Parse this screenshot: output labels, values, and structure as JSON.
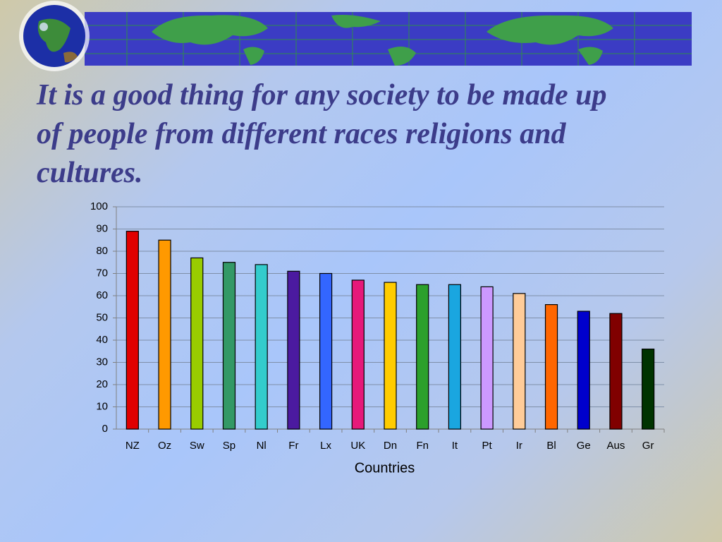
{
  "chart_data": {
    "type": "bar",
    "title": "It is a good thing for any society to be made up of people from different races religions and cultures.",
    "x_label": "Countries",
    "categories": [
      "NZ",
      "Oz",
      "Sw",
      "Sp",
      "Nl",
      "Fr",
      "Lx",
      "UK",
      "Dn",
      "Fn",
      "It",
      "Pt",
      "Ir",
      "Bl",
      "Ge",
      "Aus",
      "Gr"
    ],
    "values": [
      89,
      85,
      77,
      75,
      74,
      71,
      70,
      67,
      66,
      65,
      65,
      64,
      61,
      56,
      53,
      52,
      36
    ],
    "colors": [
      "#e00000",
      "#ff9900",
      "#99cc00",
      "#339966",
      "#33cccc",
      "#4b1aa0",
      "#3366ff",
      "#e6197a",
      "#ffcc00",
      "#2ca02c",
      "#1aa6e0",
      "#cc99ff",
      "#ffcc99",
      "#ff6600",
      "#0000cc",
      "#800000",
      "#003300"
    ],
    "ylim": [
      0,
      100
    ],
    "yticks": [
      0,
      10,
      20,
      30,
      40,
      50,
      60,
      70,
      80,
      90,
      100
    ],
    "grid": true
  }
}
